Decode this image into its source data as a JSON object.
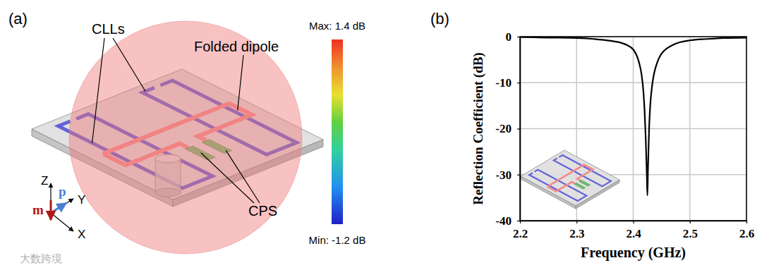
{
  "panel_labels": [
    "(a)",
    "(b)"
  ],
  "watermark": "大数跨境",
  "diagram": {
    "labels": {
      "clls": "CLLs",
      "folded_dipole": "Folded dipole",
      "cps": "CPS"
    },
    "axes": [
      "Z",
      "Y",
      "X"
    ],
    "moments": [
      "p",
      "m"
    ],
    "colorbar": {
      "max_label": "Max: 1.4 dB",
      "min_label": "Min: -1.2 dB"
    }
  },
  "chart_data": {
    "type": "line",
    "x_label": "Frequency (GHz)",
    "y_label": "Reflection Coefficient (dB)",
    "x": [
      2.2,
      2.25,
      2.3,
      2.33,
      2.36,
      2.38,
      2.39,
      2.4,
      2.405,
      2.41,
      2.415,
      2.418,
      2.42,
      2.422,
      2.424,
      2.425,
      2.426,
      2.428,
      2.43,
      2.433,
      2.436,
      2.44,
      2.445,
      2.45,
      2.46,
      2.47,
      2.48,
      2.5,
      2.53,
      2.56,
      2.6
    ],
    "values": [
      -0.1,
      -0.2,
      -0.3,
      -0.5,
      -0.9,
      -1.4,
      -1.9,
      -2.8,
      -3.8,
      -5.5,
      -8.5,
      -12.0,
      -16.0,
      -22.0,
      -30.0,
      -34.5,
      -29.0,
      -20.0,
      -15.0,
      -11.0,
      -8.5,
      -6.5,
      -4.8,
      -3.7,
      -2.5,
      -1.8,
      -1.3,
      -0.8,
      -0.5,
      -0.3,
      -0.2
    ],
    "color": "#000000",
    "xlim": [
      2.2,
      2.6
    ],
    "ylim": [
      -40,
      0
    ],
    "xticks": [
      2.2,
      2.3,
      2.4,
      2.5,
      2.6
    ],
    "yticks": [
      -40,
      -30,
      -20,
      -10,
      0
    ],
    "grid": true
  }
}
